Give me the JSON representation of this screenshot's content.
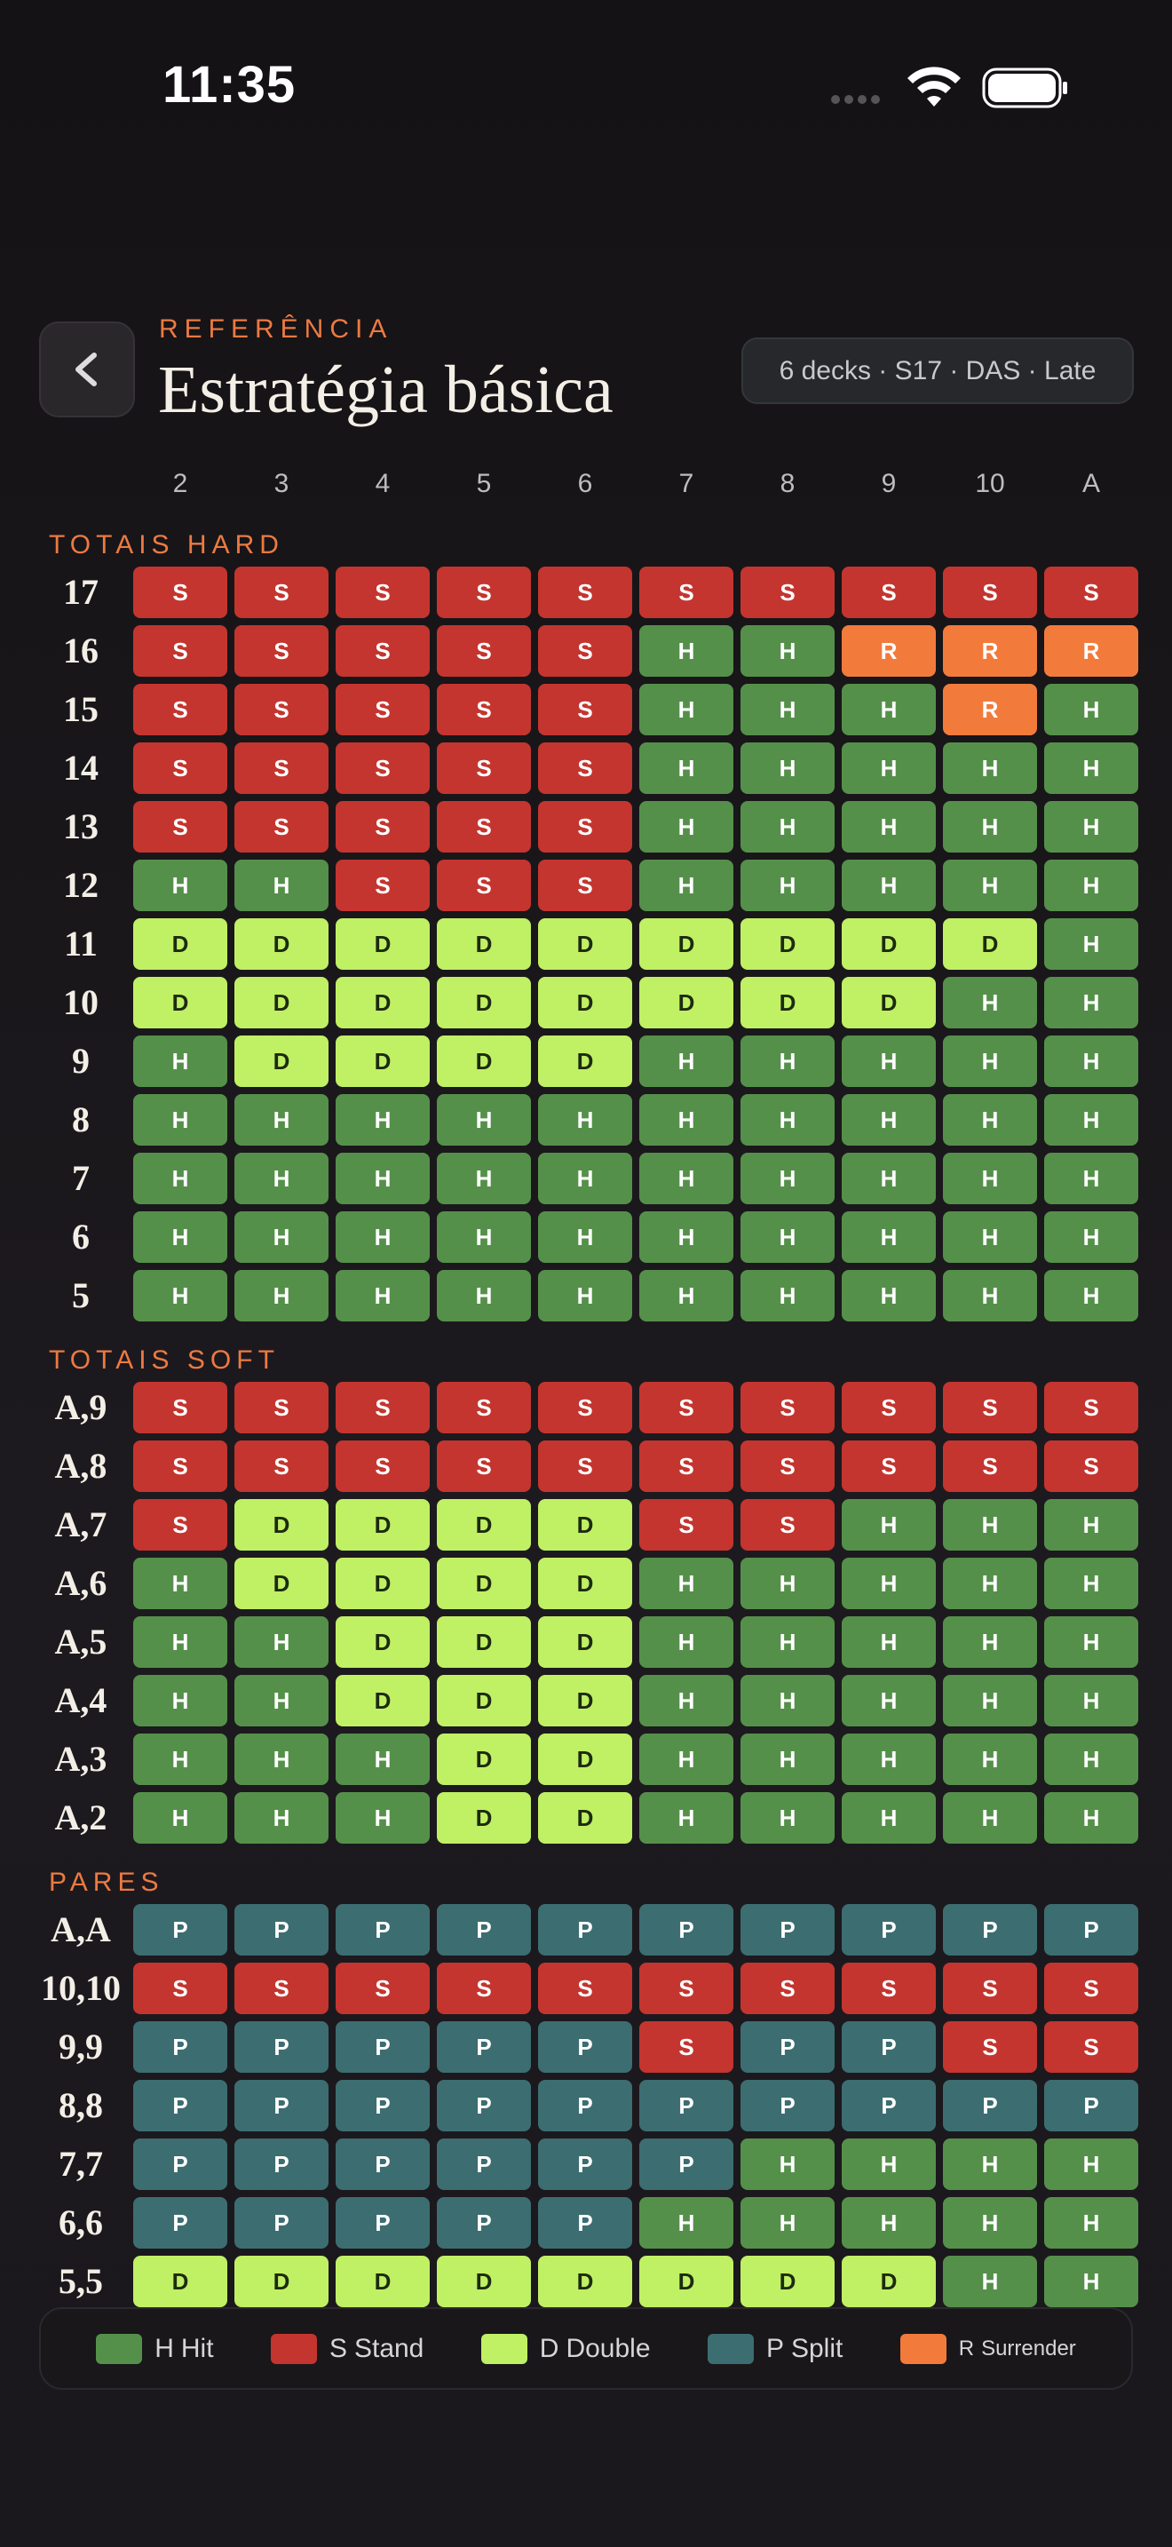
{
  "status_bar": {
    "time": "11:35"
  },
  "header": {
    "eyebrow": "REFERÊNCIA",
    "title": "Estratégia básica",
    "badge": "6 decks · S17 · DAS · Late"
  },
  "columns": [
    "2",
    "3",
    "4",
    "5",
    "6",
    "7",
    "8",
    "9",
    "10",
    "A"
  ],
  "sections": [
    {
      "label": "TOTAIS HARD",
      "rows": [
        {
          "label": "17",
          "cells": [
            "S",
            "S",
            "S",
            "S",
            "S",
            "S",
            "S",
            "S",
            "S",
            "S"
          ]
        },
        {
          "label": "16",
          "cells": [
            "S",
            "S",
            "S",
            "S",
            "S",
            "H",
            "H",
            "R",
            "R",
            "R"
          ]
        },
        {
          "label": "15",
          "cells": [
            "S",
            "S",
            "S",
            "S",
            "S",
            "H",
            "H",
            "H",
            "R",
            "H"
          ]
        },
        {
          "label": "14",
          "cells": [
            "S",
            "S",
            "S",
            "S",
            "S",
            "H",
            "H",
            "H",
            "H",
            "H"
          ]
        },
        {
          "label": "13",
          "cells": [
            "S",
            "S",
            "S",
            "S",
            "S",
            "H",
            "H",
            "H",
            "H",
            "H"
          ]
        },
        {
          "label": "12",
          "cells": [
            "H",
            "H",
            "S",
            "S",
            "S",
            "H",
            "H",
            "H",
            "H",
            "H"
          ]
        },
        {
          "label": "11",
          "cells": [
            "D",
            "D",
            "D",
            "D",
            "D",
            "D",
            "D",
            "D",
            "D",
            "H"
          ]
        },
        {
          "label": "10",
          "cells": [
            "D",
            "D",
            "D",
            "D",
            "D",
            "D",
            "D",
            "D",
            "H",
            "H"
          ]
        },
        {
          "label": "9",
          "cells": [
            "H",
            "D",
            "D",
            "D",
            "D",
            "H",
            "H",
            "H",
            "H",
            "H"
          ]
        },
        {
          "label": "8",
          "cells": [
            "H",
            "H",
            "H",
            "H",
            "H",
            "H",
            "H",
            "H",
            "H",
            "H"
          ]
        },
        {
          "label": "7",
          "cells": [
            "H",
            "H",
            "H",
            "H",
            "H",
            "H",
            "H",
            "H",
            "H",
            "H"
          ]
        },
        {
          "label": "6",
          "cells": [
            "H",
            "H",
            "H",
            "H",
            "H",
            "H",
            "H",
            "H",
            "H",
            "H"
          ]
        },
        {
          "label": "5",
          "cells": [
            "H",
            "H",
            "H",
            "H",
            "H",
            "H",
            "H",
            "H",
            "H",
            "H"
          ]
        }
      ]
    },
    {
      "label": "TOTAIS SOFT",
      "rows": [
        {
          "label": "A,9",
          "cells": [
            "S",
            "S",
            "S",
            "S",
            "S",
            "S",
            "S",
            "S",
            "S",
            "S"
          ]
        },
        {
          "label": "A,8",
          "cells": [
            "S",
            "S",
            "S",
            "S",
            "S",
            "S",
            "S",
            "S",
            "S",
            "S"
          ]
        },
        {
          "label": "A,7",
          "cells": [
            "S",
            "D",
            "D",
            "D",
            "D",
            "S",
            "S",
            "H",
            "H",
            "H"
          ]
        },
        {
          "label": "A,6",
          "cells": [
            "H",
            "D",
            "D",
            "D",
            "D",
            "H",
            "H",
            "H",
            "H",
            "H"
          ]
        },
        {
          "label": "A,5",
          "cells": [
            "H",
            "H",
            "D",
            "D",
            "D",
            "H",
            "H",
            "H",
            "H",
            "H"
          ]
        },
        {
          "label": "A,4",
          "cells": [
            "H",
            "H",
            "D",
            "D",
            "D",
            "H",
            "H",
            "H",
            "H",
            "H"
          ]
        },
        {
          "label": "A,3",
          "cells": [
            "H",
            "H",
            "H",
            "D",
            "D",
            "H",
            "H",
            "H",
            "H",
            "H"
          ]
        },
        {
          "label": "A,2",
          "cells": [
            "H",
            "H",
            "H",
            "D",
            "D",
            "H",
            "H",
            "H",
            "H",
            "H"
          ]
        }
      ]
    },
    {
      "label": "PARES",
      "rows": [
        {
          "label": "A,A",
          "cells": [
            "P",
            "P",
            "P",
            "P",
            "P",
            "P",
            "P",
            "P",
            "P",
            "P"
          ]
        },
        {
          "label": "10,10",
          "cells": [
            "S",
            "S",
            "S",
            "S",
            "S",
            "S",
            "S",
            "S",
            "S",
            "S"
          ]
        },
        {
          "label": "9,9",
          "cells": [
            "P",
            "P",
            "P",
            "P",
            "P",
            "S",
            "P",
            "P",
            "S",
            "S"
          ]
        },
        {
          "label": "8,8",
          "cells": [
            "P",
            "P",
            "P",
            "P",
            "P",
            "P",
            "P",
            "P",
            "P",
            "P"
          ]
        },
        {
          "label": "7,7",
          "cells": [
            "P",
            "P",
            "P",
            "P",
            "P",
            "P",
            "H",
            "H",
            "H",
            "H"
          ]
        },
        {
          "label": "6,6",
          "cells": [
            "P",
            "P",
            "P",
            "P",
            "P",
            "H",
            "H",
            "H",
            "H",
            "H"
          ]
        },
        {
          "label": "5,5",
          "cells": [
            "D",
            "D",
            "D",
            "D",
            "D",
            "D",
            "D",
            "D",
            "H",
            "H"
          ]
        }
      ]
    }
  ],
  "legend": [
    {
      "code": "H",
      "label": "Hit",
      "color": "#55904a"
    },
    {
      "code": "S",
      "label": "Stand",
      "color": "#c4352f"
    },
    {
      "code": "D",
      "label": "Double",
      "color": "#c0f064"
    },
    {
      "code": "P",
      "label": "Split",
      "color": "#3c6d71"
    },
    {
      "code": "R",
      "label": "Surrender",
      "color": "#f27b3c"
    }
  ]
}
